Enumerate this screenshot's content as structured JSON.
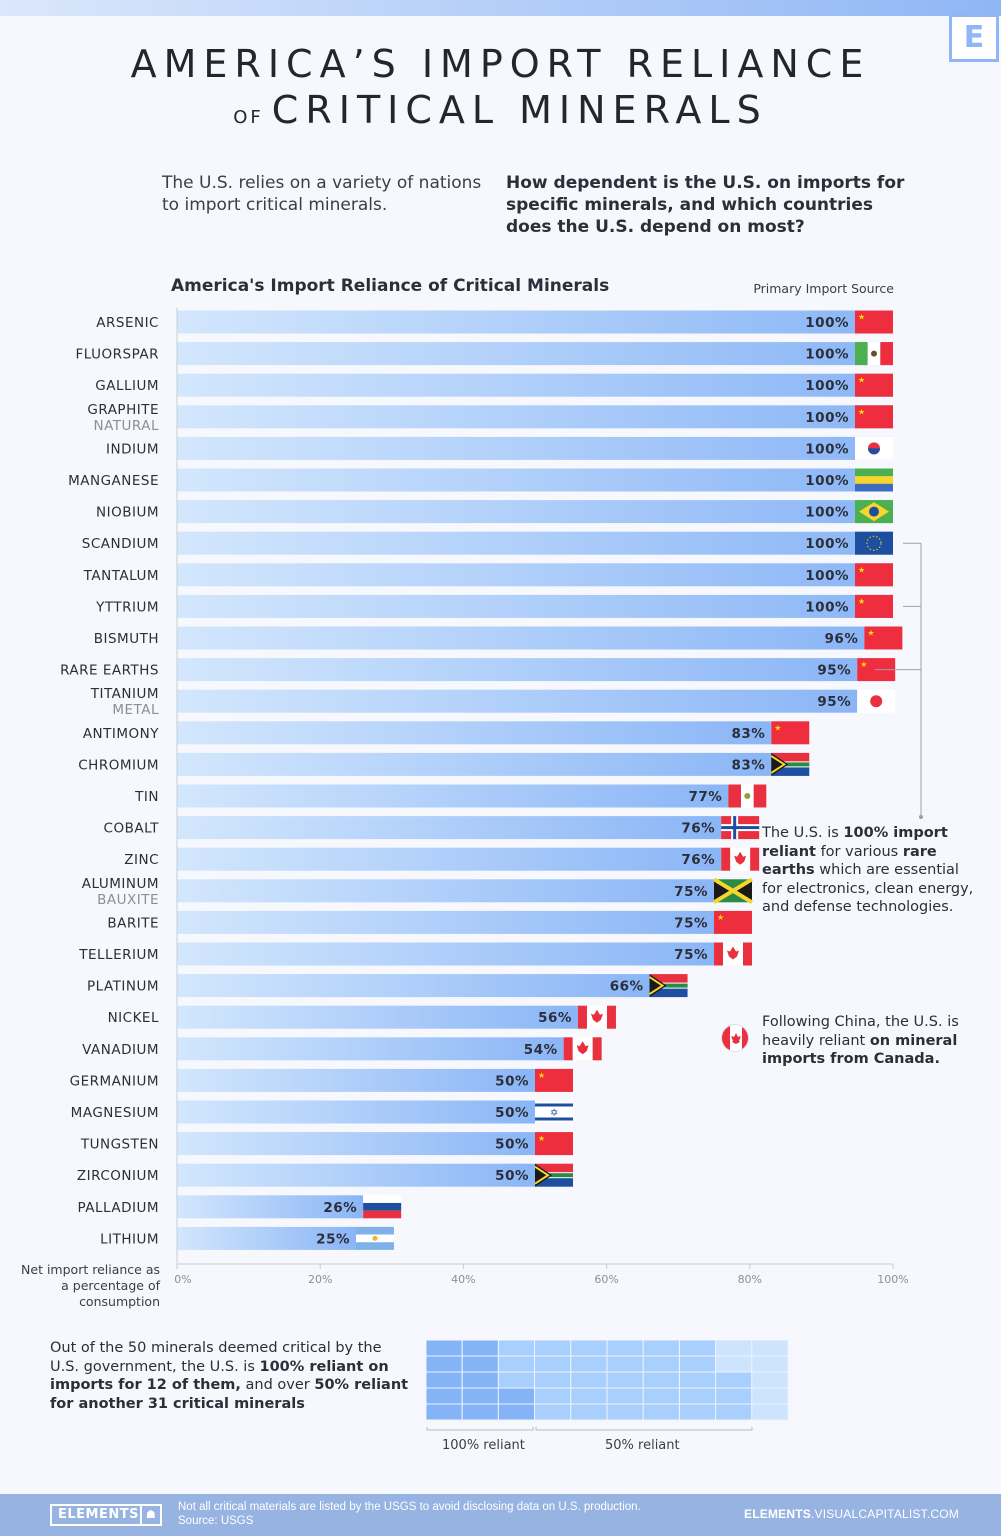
{
  "header": {
    "title_line1": "AMERICA’S IMPORT RELIANCE",
    "title_of": "OF",
    "title_line2": "CRITICAL MINERALS",
    "logo": "E"
  },
  "intro": "The U.S. relies on a variety of nations to import critical minerals.",
  "question": "How dependent is the U.S. on imports for specific minerals, and which countries does the U.S. depend on most?",
  "chart_data": {
    "type": "bar",
    "orientation": "horizontal",
    "title": "America's Import Reliance of Critical Minerals",
    "legend_header": "Primary Import Source",
    "xlabel": "Net import reliance as a percentage of consumption",
    "xlim": [
      0,
      100
    ],
    "x_ticks": [
      "0%",
      "20%",
      "40%",
      "60%",
      "80%",
      "100%"
    ],
    "categories": [
      {
        "name": "ARSENIC",
        "sub": "",
        "value": 100,
        "source": "CN"
      },
      {
        "name": "FLUORSPAR",
        "sub": "",
        "value": 100,
        "source": "MX"
      },
      {
        "name": "GALLIUM",
        "sub": "",
        "value": 100,
        "source": "CN"
      },
      {
        "name": "GRAPHITE",
        "sub": "NATURAL",
        "value": 100,
        "source": "CN"
      },
      {
        "name": "INDIUM",
        "sub": "",
        "value": 100,
        "source": "KR"
      },
      {
        "name": "MANGANESE",
        "sub": "",
        "value": 100,
        "source": "GA"
      },
      {
        "name": "NIOBIUM",
        "sub": "",
        "value": 100,
        "source": "BR"
      },
      {
        "name": "SCANDIUM",
        "sub": "",
        "value": 100,
        "source": "EU"
      },
      {
        "name": "TANTALUM",
        "sub": "",
        "value": 100,
        "source": "CN"
      },
      {
        "name": "YTTRIUM",
        "sub": "",
        "value": 100,
        "source": "CN"
      },
      {
        "name": "BISMUTH",
        "sub": "",
        "value": 96,
        "source": "CN"
      },
      {
        "name": "RARE EARTHS",
        "sub": "",
        "value": 95,
        "source": "CN"
      },
      {
        "name": "TITANIUM",
        "sub": "METAL",
        "value": 95,
        "source": "JP"
      },
      {
        "name": "ANTIMONY",
        "sub": "",
        "value": 83,
        "source": "CN"
      },
      {
        "name": "CHROMIUM",
        "sub": "",
        "value": 83,
        "source": "ZA"
      },
      {
        "name": "TIN",
        "sub": "",
        "value": 77,
        "source": "PE"
      },
      {
        "name": "COBALT",
        "sub": "",
        "value": 76,
        "source": "NO"
      },
      {
        "name": "ZINC",
        "sub": "",
        "value": 76,
        "source": "CA"
      },
      {
        "name": "ALUMINUM",
        "sub": "BAUXITE",
        "value": 75,
        "source": "JM"
      },
      {
        "name": "BARITE",
        "sub": "",
        "value": 75,
        "source": "CN"
      },
      {
        "name": "TELLERIUM",
        "sub": "",
        "value": 75,
        "source": "CA"
      },
      {
        "name": "PLATINUM",
        "sub": "",
        "value": 66,
        "source": "ZA"
      },
      {
        "name": "NICKEL",
        "sub": "",
        "value": 56,
        "source": "CA"
      },
      {
        "name": "VANADIUM",
        "sub": "",
        "value": 54,
        "source": "CA"
      },
      {
        "name": "GERMANIUM",
        "sub": "",
        "value": 50,
        "source": "CN"
      },
      {
        "name": "MAGNESIUM",
        "sub": "",
        "value": 50,
        "source": "IL"
      },
      {
        "name": "TUNGSTEN",
        "sub": "",
        "value": 50,
        "source": "CN"
      },
      {
        "name": "ZIRCONIUM",
        "sub": "",
        "value": 50,
        "source": "ZA"
      },
      {
        "name": "PALLADIUM",
        "sub": "",
        "value": 26,
        "source": "RU"
      },
      {
        "name": "LITHIUM",
        "sub": "",
        "value": 25,
        "source": "AR"
      }
    ],
    "colors": {
      "bar_start": "#d3e7fd",
      "bar_end": "#8ab5f6"
    }
  },
  "annotations": {
    "rare_earths": {
      "t1": "The U.S. is ",
      "b1": "100% import reliant",
      "t2": " for various ",
      "b2": "rare earths",
      "t3": " which are essential for electronics, clean energy, and defense technologies."
    },
    "canada": {
      "t1": "Following China, the U.S. is heavily reliant ",
      "b1": "on mineral imports from Canada."
    }
  },
  "waffle": {
    "text": {
      "t1": "Out of the 50 minerals deemed critical by the U.S. government, the U.S. is ",
      "b1": "100% reliant on imports for 12 of them,",
      "t2": " and over ",
      "b2": "50% reliant for another 31 critical minerals"
    },
    "total": 50,
    "full_reliant": 12,
    "half_reliant": 31,
    "label_100": "100% reliant",
    "label_50": "50% reliant",
    "colors": {
      "full": "#85b3f8",
      "half": "#a8cffd",
      "other": "#cce4fe"
    }
  },
  "footer": {
    "logo": "ELEMENTS",
    "note": "Not all critical materials are listed by the USGS to avoid disclosing data on U.S. production.",
    "source": "Source: USGS",
    "url_bold": "ELEMENTS",
    "url_rest": ".VISUALCAPITALIST.COM"
  }
}
